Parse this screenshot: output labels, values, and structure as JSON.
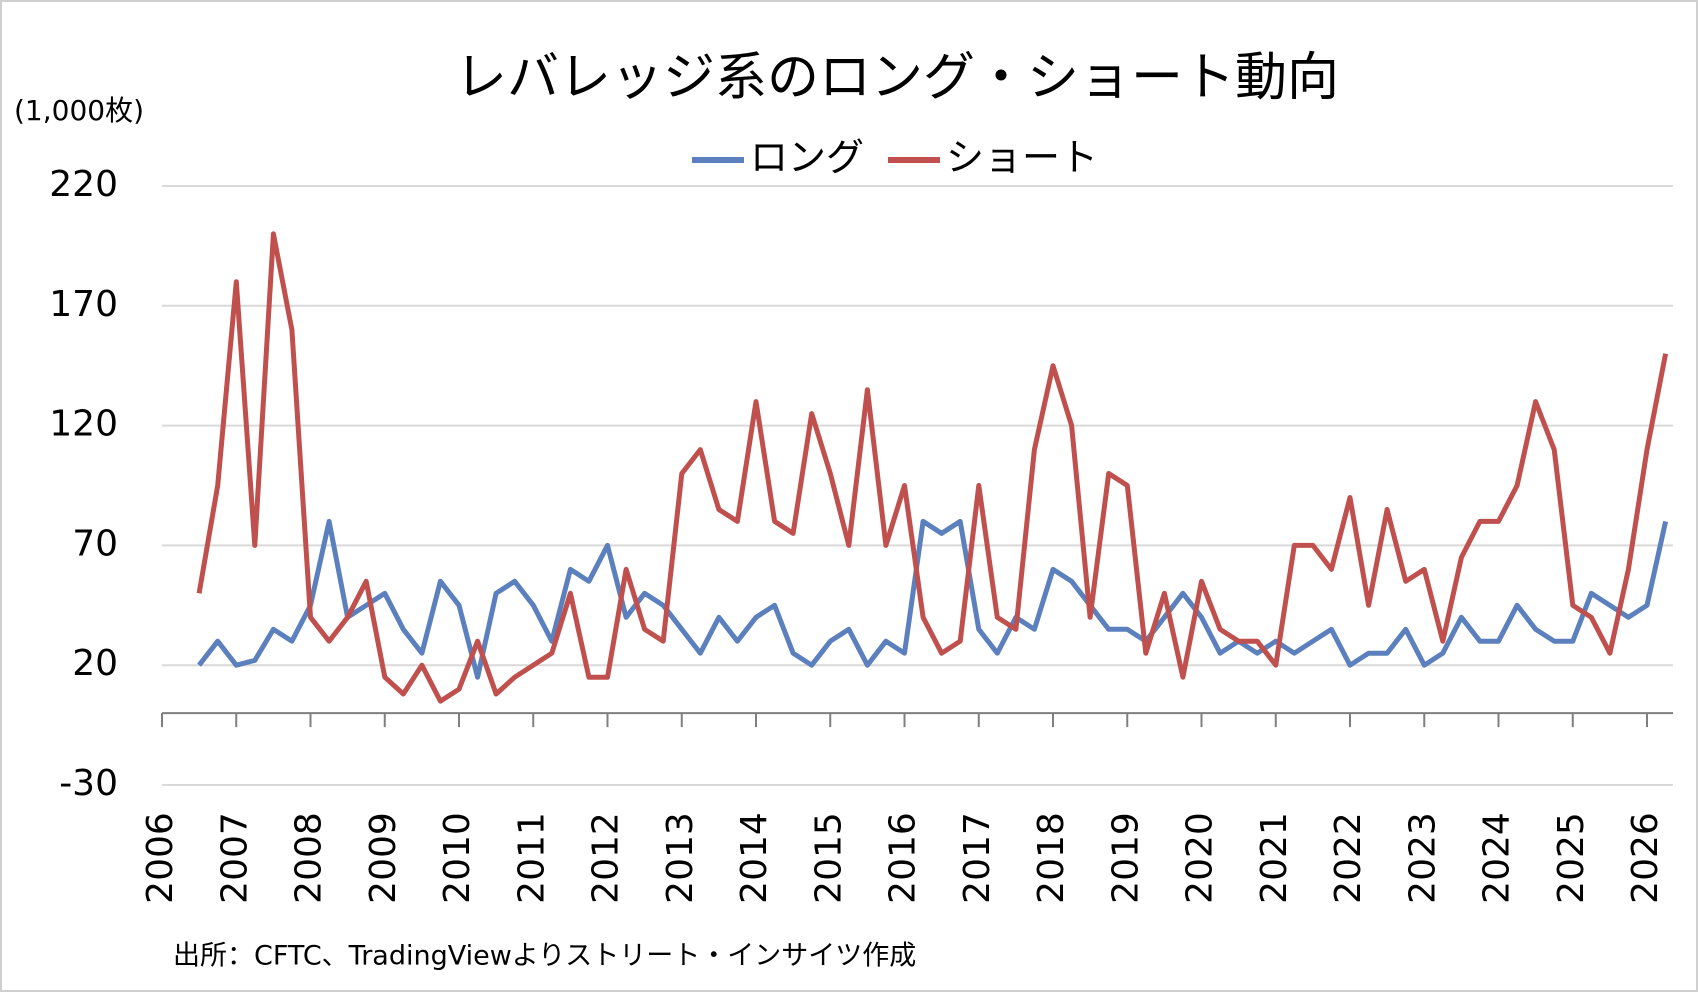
{
  "chart_data": {
    "type": "line",
    "title": "レバレッジ系のロング・ショート動向",
    "y_axis_label": "(1,000枚)",
    "source": "出所：CFTC、TradingViewよりストリート・インサイツ作成",
    "x": [
      2006.5,
      2006.75,
      2007,
      2007.25,
      2007.5,
      2007.75,
      2008,
      2008.25,
      2008.5,
      2008.75,
      2009,
      2009.25,
      2009.5,
      2009.75,
      2010,
      2010.25,
      2010.5,
      2010.75,
      2011,
      2011.25,
      2011.5,
      2011.75,
      2012,
      2012.25,
      2012.5,
      2012.75,
      2013,
      2013.25,
      2013.5,
      2013.75,
      2014,
      2014.25,
      2014.5,
      2014.75,
      2015,
      2015.25,
      2015.5,
      2015.75,
      2016,
      2016.25,
      2016.5,
      2016.75,
      2017,
      2017.25,
      2017.5,
      2017.75,
      2018,
      2018.25,
      2018.5,
      2018.75,
      2019,
      2019.25,
      2019.5,
      2019.75,
      2020,
      2020.25,
      2020.5,
      2020.75,
      2021,
      2021.25,
      2021.5,
      2021.75,
      2022,
      2022.25,
      2022.5,
      2022.75,
      2023,
      2023.25,
      2023.5,
      2023.75,
      2024,
      2024.25,
      2024.5,
      2024.75,
      2025,
      2025.25,
      2025.5,
      2025.75,
      2026,
      2026.25
    ],
    "series": [
      {
        "name": "ロング",
        "color": "#5b80bd",
        "values": [
          20,
          30,
          20,
          22,
          35,
          30,
          45,
          80,
          40,
          45,
          50,
          35,
          25,
          55,
          45,
          15,
          50,
          55,
          45,
          30,
          60,
          55,
          70,
          40,
          50,
          45,
          35,
          25,
          40,
          30,
          40,
          45,
          25,
          20,
          30,
          35,
          20,
          30,
          25,
          80,
          75,
          80,
          35,
          25,
          40,
          35,
          60,
          55,
          45,
          35,
          35,
          30,
          40,
          50,
          40,
          25,
          30,
          25,
          30,
          25,
          30,
          35,
          20,
          25,
          25,
          35,
          20,
          25,
          40,
          30,
          30,
          45,
          35,
          30,
          30,
          50,
          45,
          40,
          45,
          80
        ]
      },
      {
        "name": "ショート",
        "color": "#c0504d",
        "values": [
          50,
          95,
          180,
          70,
          200,
          160,
          40,
          30,
          40,
          55,
          15,
          8,
          20,
          5,
          10,
          30,
          8,
          15,
          20,
          25,
          50,
          15,
          15,
          60,
          35,
          30,
          100,
          110,
          85,
          80,
          130,
          80,
          75,
          125,
          100,
          70,
          135,
          70,
          95,
          40,
          25,
          30,
          95,
          40,
          35,
          110,
          145,
          120,
          40,
          100,
          95,
          25,
          50,
          15,
          55,
          35,
          30,
          30,
          20,
          70,
          70,
          60,
          90,
          45,
          85,
          55,
          60,
          30,
          65,
          80,
          80,
          95,
          130,
          110,
          45,
          40,
          25,
          60,
          110,
          150
        ]
      }
    ],
    "xlim": [
      2006,
      2026.35
    ],
    "xticks": [
      2006,
      2007,
      2008,
      2009,
      2010,
      2011,
      2012,
      2013,
      2014,
      2015,
      2016,
      2017,
      2018,
      2019,
      2020,
      2021,
      2022,
      2023,
      2024,
      2025,
      2026
    ],
    "ylim": [
      -30,
      220
    ],
    "yticks": [
      -30,
      20,
      70,
      120,
      170,
      220
    ],
    "grid": true
  }
}
